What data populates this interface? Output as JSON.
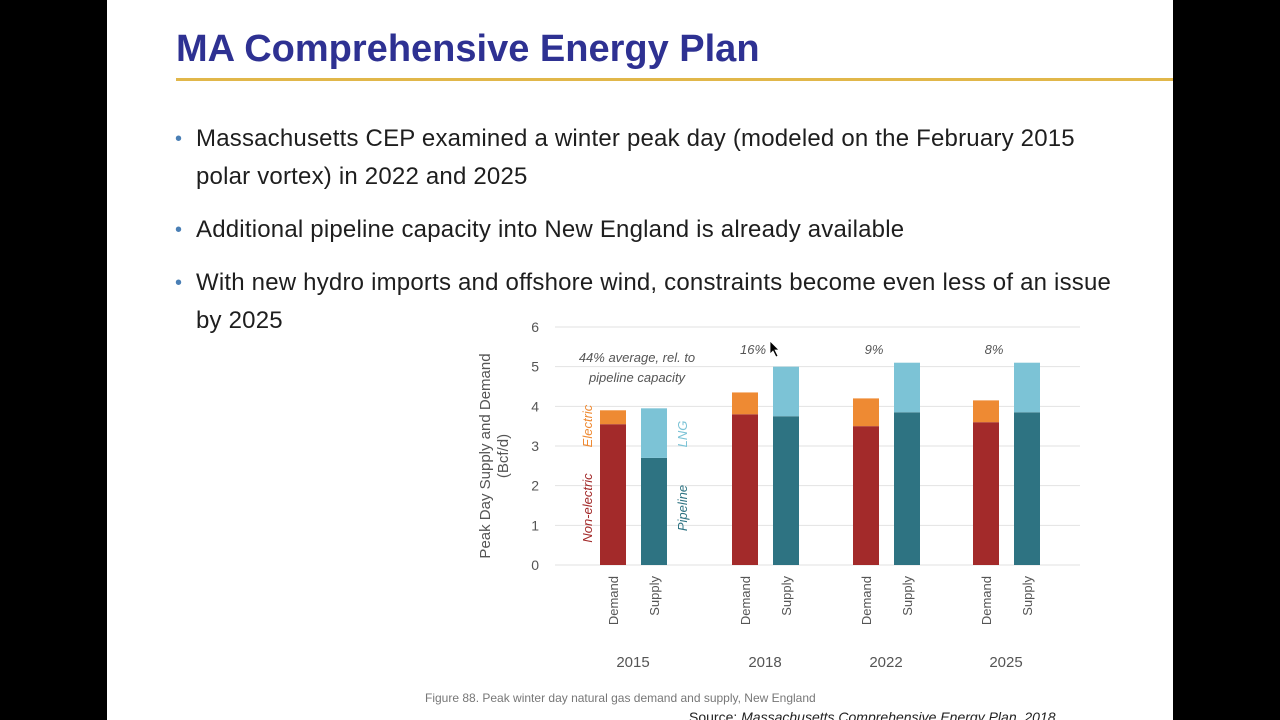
{
  "slide": {
    "title": "MA Comprehensive Energy Plan",
    "bullets": [
      "Massachusetts CEP examined a winter peak day (modeled on the February 2015 polar vortex) in 2022 and 2025",
      "Additional pipeline capacity into New England is already available",
      "With new hydro imports and offshore wind, constraints become even less of an issue by 2025"
    ],
    "caption": "Figure 88. Peak winter day natural gas demand and supply, New England",
    "source_prefix": "Source: ",
    "source_title": "Massachusetts Comprehensive Energy Plan, 2018"
  },
  "colors": {
    "title": "#2e3192",
    "rule": "#e1b74a",
    "bullet": "#4a7fb5",
    "non_electric": "#a32a2a",
    "electric": "#ee8a33",
    "pipeline": "#2e7382",
    "lng": "#7cc3d6"
  },
  "chart_data": {
    "type": "bar",
    "stacked": true,
    "ylabel": "Peak Day Supply and Demand\n(Bcf/d)",
    "ylim": [
      0,
      6
    ],
    "yticks": [
      0,
      1,
      2,
      3,
      4,
      5,
      6
    ],
    "grid": true,
    "groups": [
      "2015",
      "2018",
      "2022",
      "2025"
    ],
    "bar_labels": [
      "Demand",
      "Supply"
    ],
    "demand": {
      "non_electric": [
        3.55,
        3.8,
        3.5,
        3.6
      ],
      "electric": [
        0.35,
        0.55,
        0.7,
        0.55
      ]
    },
    "supply": {
      "pipeline": [
        2.7,
        3.75,
        3.85,
        3.85
      ],
      "lng": [
        1.25,
        1.25,
        1.25,
        1.25
      ]
    },
    "series_labels": {
      "electric": "Electric",
      "non_electric": "Non-electric",
      "lng": "LNG",
      "pipeline": "Pipeline"
    },
    "annotations": {
      "2015": "44% average, rel. to\npipeline capacity",
      "2018": "16%",
      "2022": "9%",
      "2025": "8%"
    }
  }
}
